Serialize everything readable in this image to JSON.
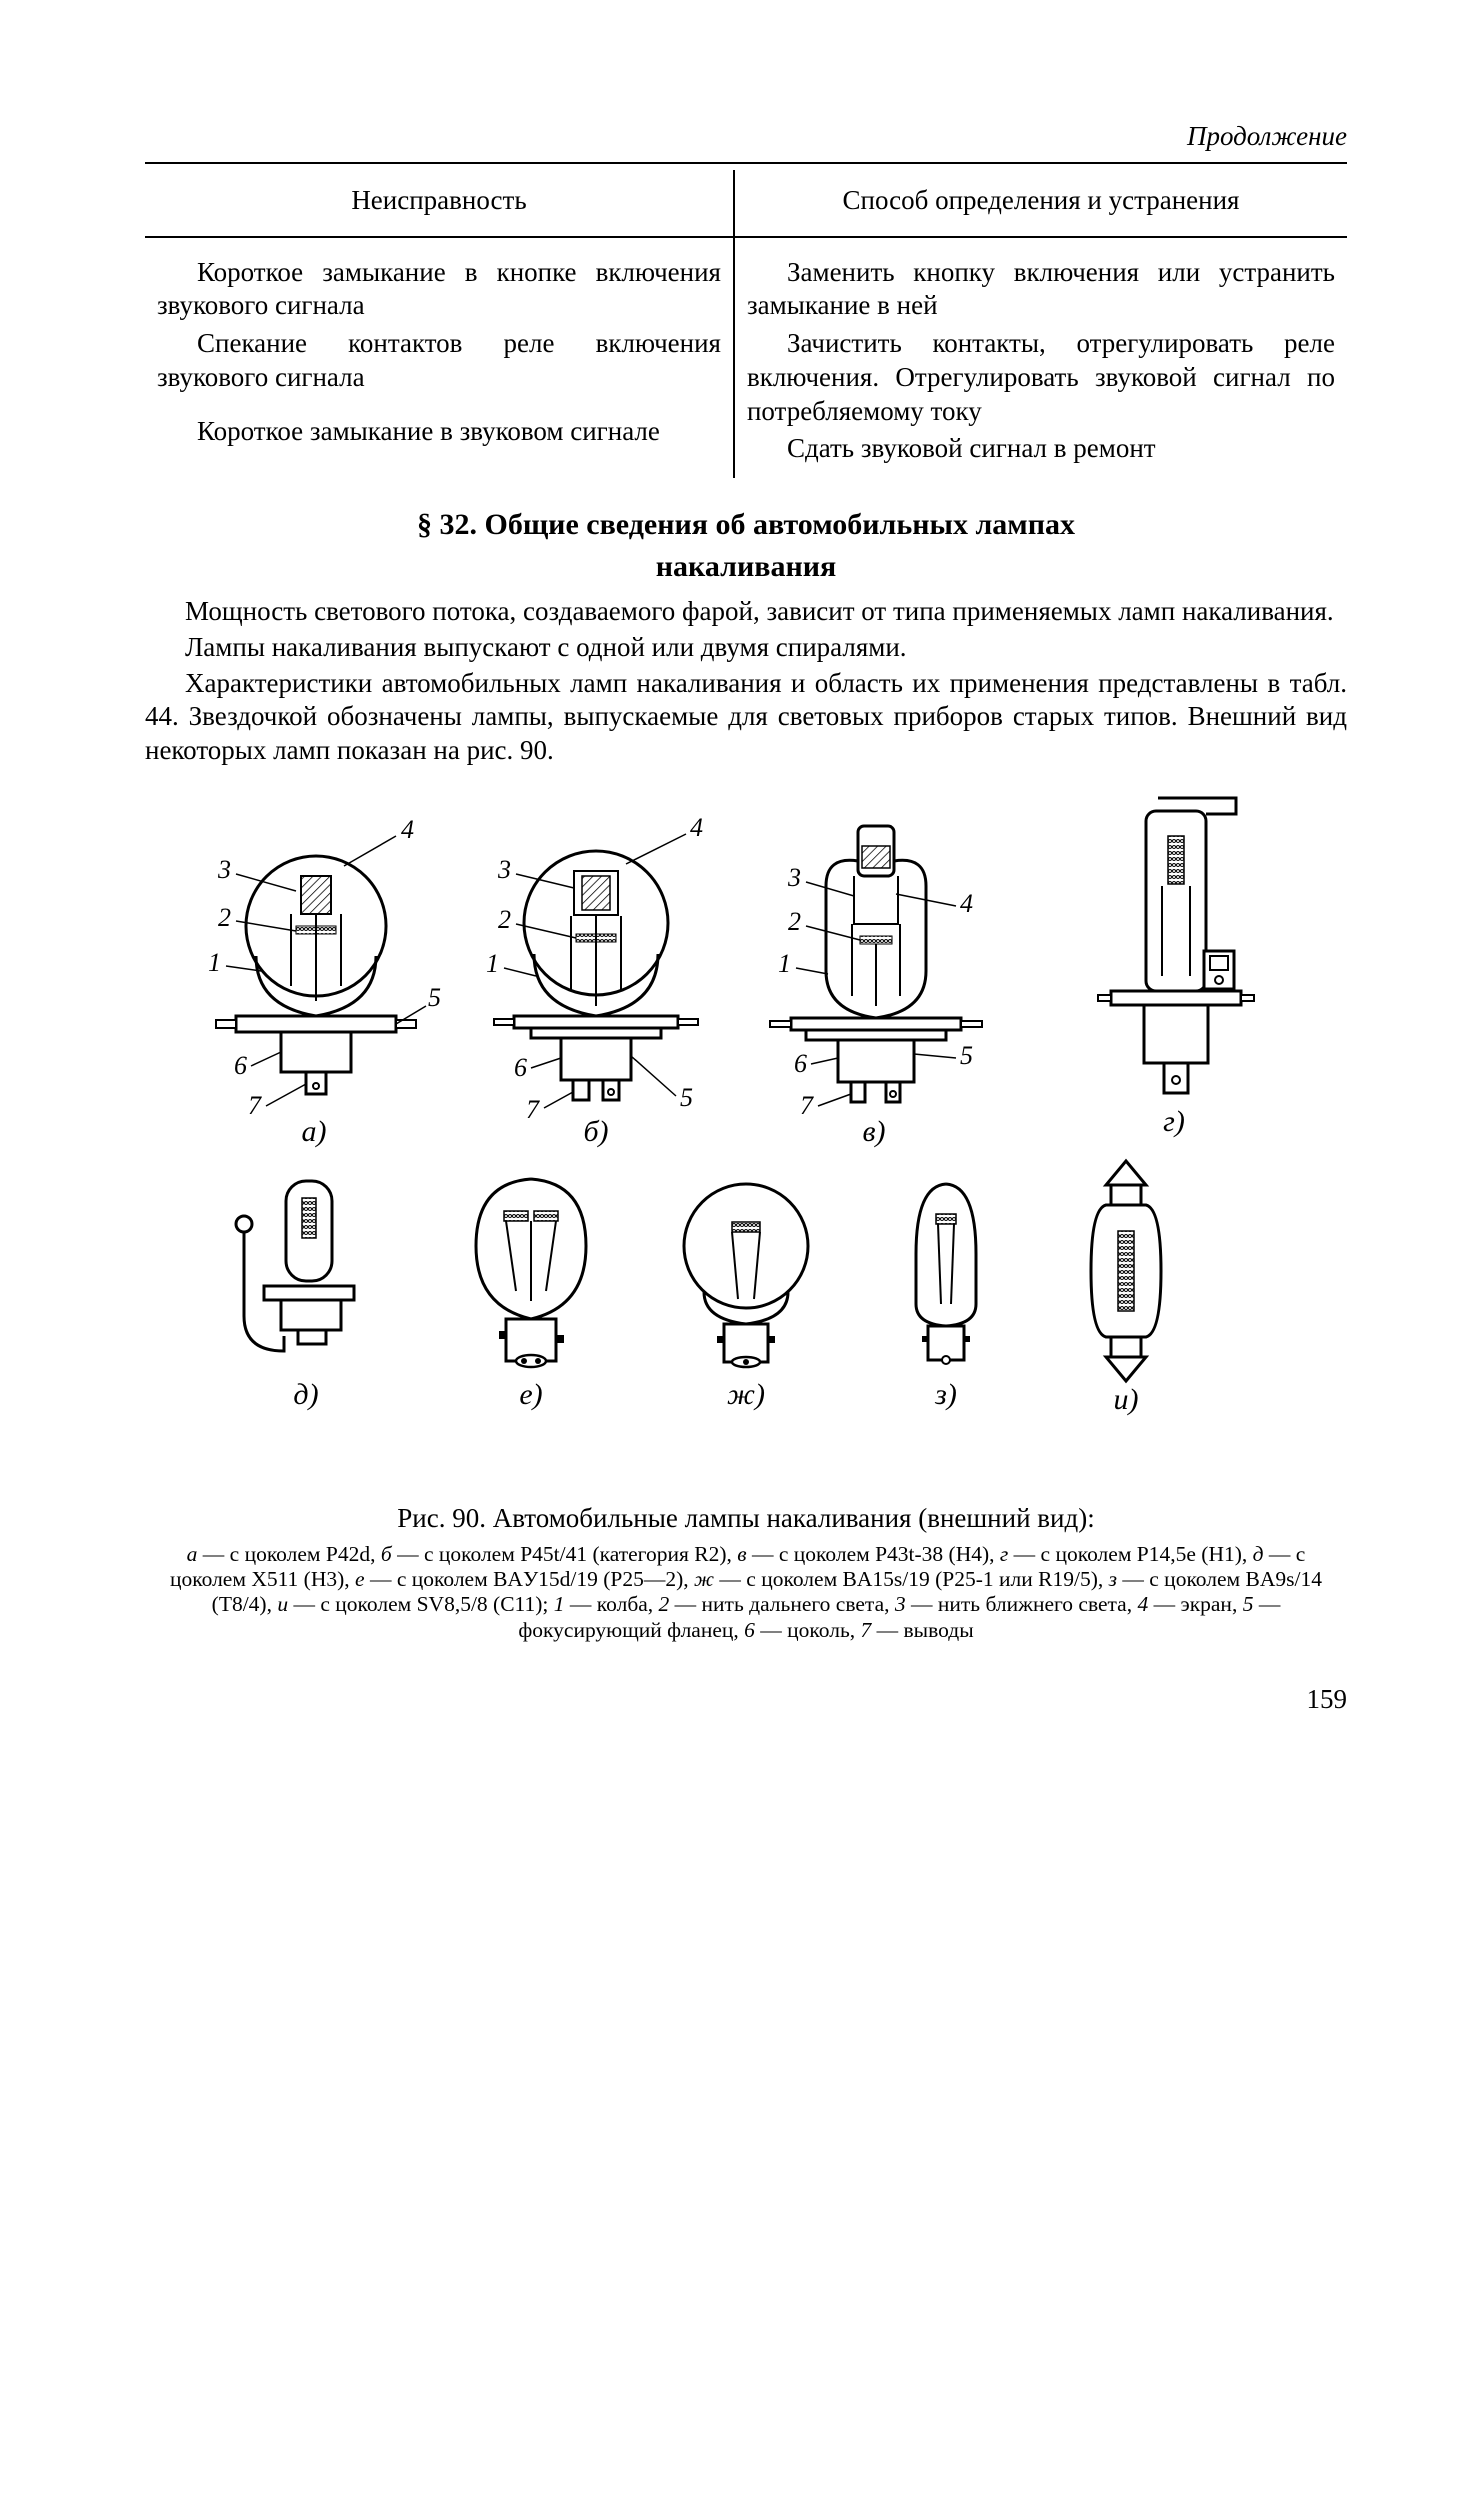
{
  "continuation": "Продолжение",
  "table": {
    "headers": [
      "Неисправность",
      "Способ определения и устранения"
    ],
    "rows": [
      {
        "fault": "Короткое замыкание в кнопке включения звукового сигнала",
        "fix": "Заменить кнопку включения или устранить замыкание в ней"
      },
      {
        "fault": "Спекание контактов реле включения звукового сигнала",
        "fix": "Зачистить контакты, отрегулировать реле включения. Отрегулировать звуковой сигнал по потребляемому току"
      },
      {
        "fault": "Короткое замыкание в звуковом сигнале",
        "fix": "Сдать звуковой сигнал в ремонт"
      }
    ]
  },
  "section": {
    "title": "§ 32. Общие сведения об автомобильных лампах",
    "subtitle": "накаливания"
  },
  "body": {
    "p1": "Мощность светового потока, создаваемого фарой, зависит от типа применяемых ламп накаливания.",
    "p2": "Лампы накаливания выпускают с одной или двумя спиралями.",
    "p3": "Характеристики автомобильных ламп накаливания и область их применения представлены в табл. 44. Звездочкой обозначены лампы, выпускаемые для световых приборов старых типов. Внешний вид некоторых ламп показан на рис. 90."
  },
  "figure": {
    "caption": "Рис. 90. Автомобильные лампы накаливания (внешний вид):",
    "legend_html": "<span class='iview'>а</span> — с цоколем P42d, <span class='iview'>б</span> — с цоколем P45t/41 (категория R2), <span class='iview'>в</span> — с цоколем P43t-38 (H4), <span class='iview'>г</span> — с цоколем P14,5e (H1), <span class='iview'>д</span> — с цоколем X511 (H3), <span class='iview'>е</span> — с цоколем BAУ15d/19 (P25—2), <span class='iview'>ж</span> — с цоколем BA15s/19 (P25-1 или R19/5), <span class='iview'>з</span> — с цоколем BA9s/14 (T8/4), <span class='iview'>и</span> — с цоколем SV8,5/8 (C11); <span class='iview'>1</span> — колба, <span class='iview'>2</span> — нить дальнего света, <span class='iview'>3</span> — нить ближнего света, <span class='iview'>4</span> — экран, <span class='iview'>5</span> — фокусирующий фланец, <span class='iview'>6</span> — цоколь, <span class='iview'>7</span> — выводы",
    "lamps_row1": [
      {
        "label": "а)",
        "callouts": [
          "1",
          "2",
          "3",
          "4",
          "5",
          "6",
          "7"
        ]
      },
      {
        "label": "б)",
        "callouts": [
          "1",
          "2",
          "3",
          "4",
          "5",
          "6",
          "7"
        ]
      },
      {
        "label": "в)",
        "callouts": [
          "1",
          "2",
          "3",
          "4",
          "5",
          "6",
          "7"
        ]
      },
      {
        "label": "г)",
        "callouts": []
      }
    ],
    "lamps_row2": [
      {
        "label": "д)"
      },
      {
        "label": "е)"
      },
      {
        "label": "ж)"
      },
      {
        "label": "з)"
      },
      {
        "label": "и)"
      }
    ],
    "stroke": "#000000",
    "label_fontsize": 30,
    "callout_fontsize": 26
  },
  "page_number": "159"
}
